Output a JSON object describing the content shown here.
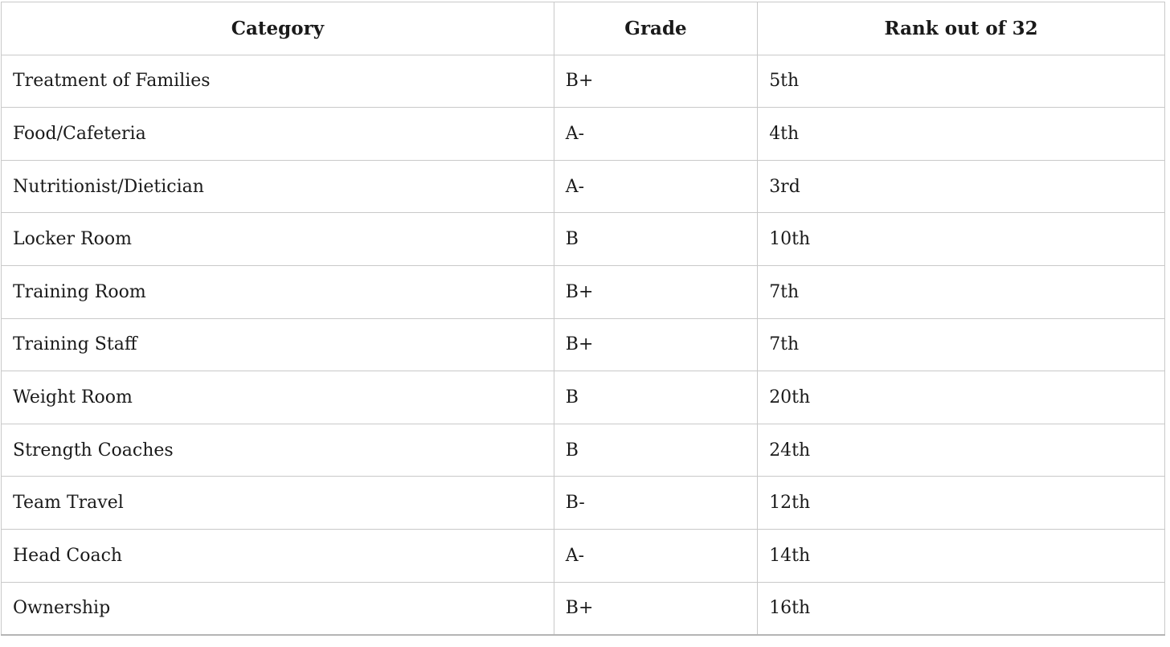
{
  "chart_data": {
    "type": "table",
    "columns": [
      "Category",
      "Grade",
      "Rank out of 32"
    ],
    "rows": [
      {
        "category": "Treatment of Families",
        "grade": "B+",
        "rank": "5th"
      },
      {
        "category": "Food/Cafeteria",
        "grade": "A-",
        "rank": "4th"
      },
      {
        "category": "Nutritionist/Dietician",
        "grade": "A-",
        "rank": "3rd"
      },
      {
        "category": "Locker Room",
        "grade": "B",
        "rank": "10th"
      },
      {
        "category": "Training Room",
        "grade": "B+",
        "rank": "7th"
      },
      {
        "category": "Training Staff",
        "grade": "B+",
        "rank": "7th"
      },
      {
        "category": "Weight Room",
        "grade": "B",
        "rank": "20th"
      },
      {
        "category": "Strength Coaches",
        "grade": "B",
        "rank": "24th"
      },
      {
        "category": "Team Travel",
        "grade": "B-",
        "rank": "12th"
      },
      {
        "category": "Head Coach",
        "grade": "A-",
        "rank": "14th"
      },
      {
        "category": "Ownership",
        "grade": "B+",
        "rank": "16th"
      }
    ]
  },
  "colors": {
    "grid_border": "#c9c9c9",
    "table_bottom_border": "#b5b5b5",
    "text": "#1a1a1a",
    "background": "#ffffff"
  }
}
